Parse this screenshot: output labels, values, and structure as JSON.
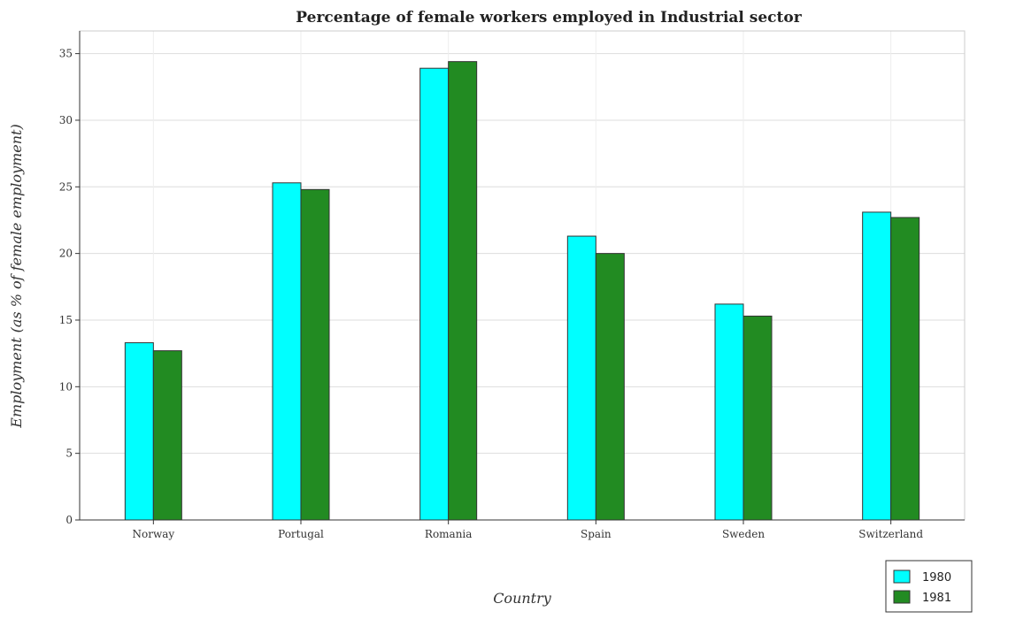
{
  "colors": {
    "series_1980": "#00ffff",
    "series_1981": "#228b22"
  },
  "chart_data": {
    "type": "bar",
    "title": "Percentage of female workers employed in Industrial sector",
    "xlabel": "Country",
    "ylabel": "Employment (as % of female employment)",
    "categories": [
      "Norway",
      "Portugal",
      "Romania",
      "Spain",
      "Sweden",
      "Switzerland"
    ],
    "series": [
      {
        "name": "1980",
        "values": [
          13.3,
          25.3,
          33.9,
          21.3,
          16.2,
          23.1
        ]
      },
      {
        "name": "1981",
        "values": [
          12.7,
          24.8,
          34.4,
          20.0,
          15.3,
          22.7
        ]
      }
    ],
    "ylim": [
      0,
      36.7
    ],
    "yticks": [
      0,
      5,
      10,
      15,
      20,
      25,
      30,
      35
    ],
    "grid": true,
    "legend": "bottom-right"
  }
}
